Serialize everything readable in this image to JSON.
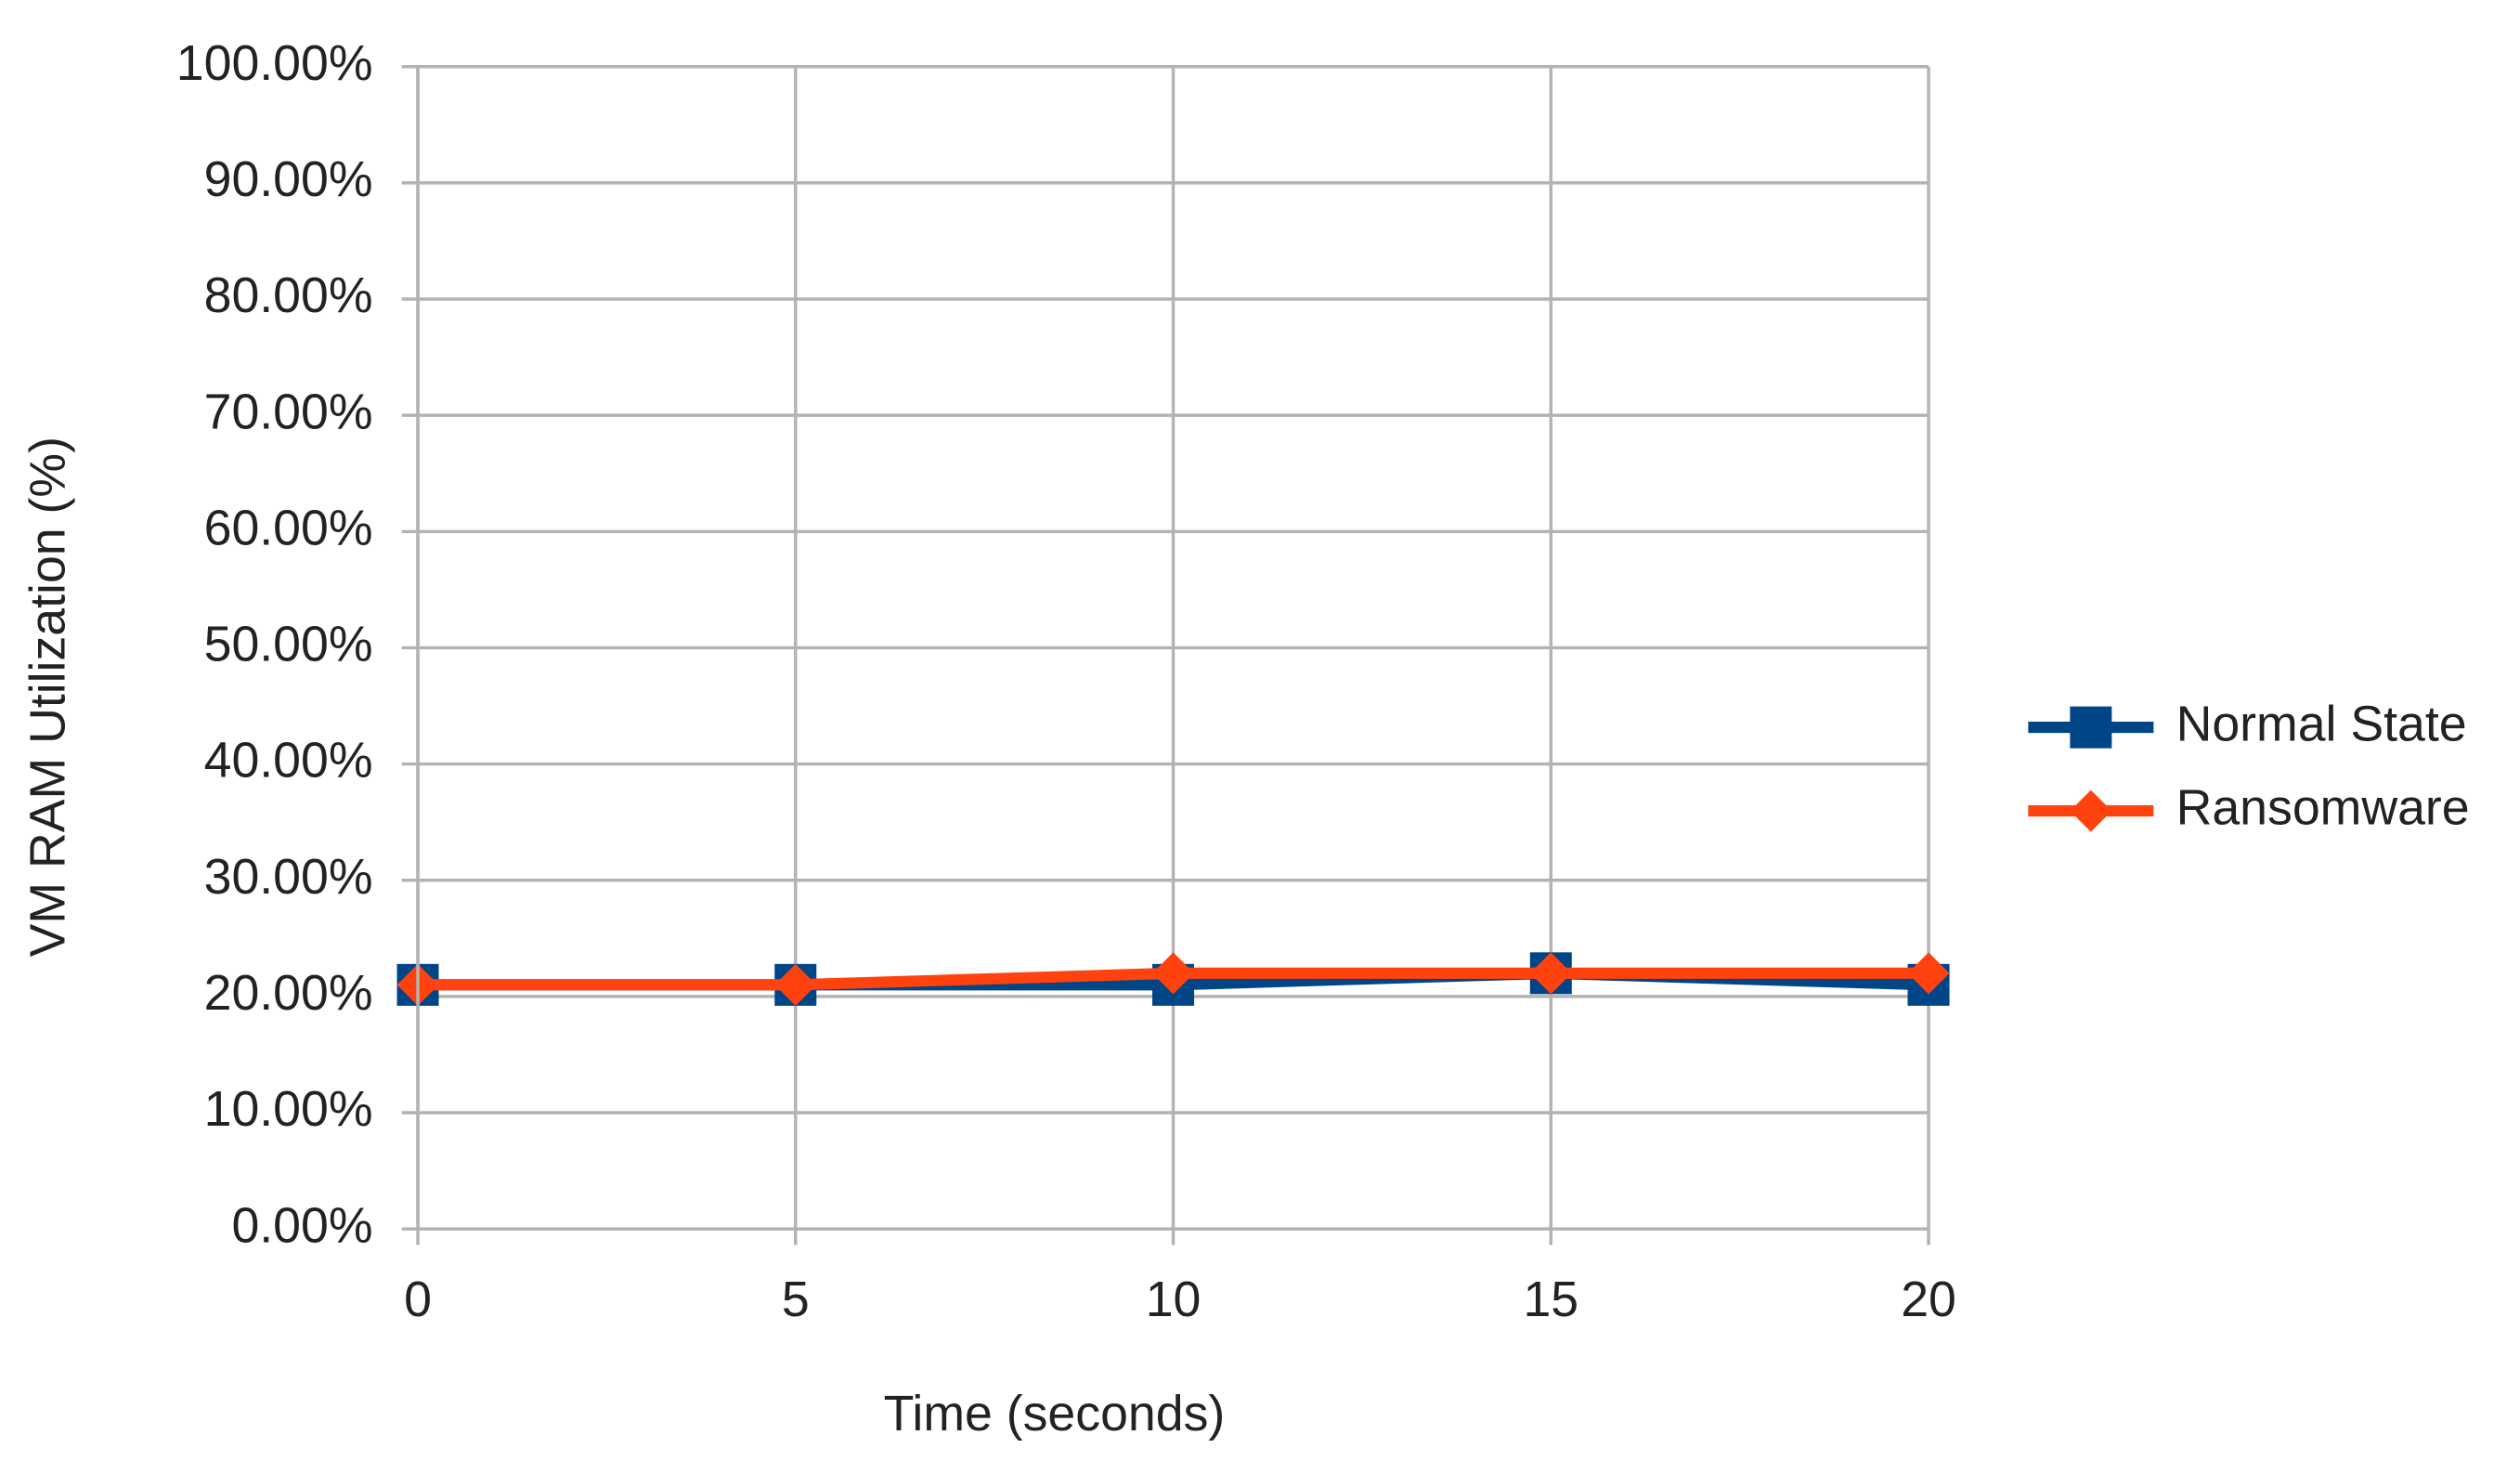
{
  "chart_data": {
    "type": "line",
    "x_label": "Time (seconds)",
    "y_label": "VM RAM Utilization (%)",
    "x": [
      0,
      5,
      10,
      15,
      20
    ],
    "series": [
      {
        "name": "Normal State",
        "color": "#004586",
        "marker": "square",
        "values": [
          21,
          21,
          21,
          22,
          21
        ]
      },
      {
        "name": "Ransomware",
        "color": "#ff420e",
        "marker": "diamond",
        "values": [
          21,
          21,
          22,
          22,
          22
        ]
      }
    ],
    "xlim": [
      0,
      20
    ],
    "xticks": [
      0,
      5,
      10,
      15,
      20
    ],
    "ylim": [
      0,
      100
    ],
    "yticks": [
      {
        "value": 0,
        "label": "0.00%"
      },
      {
        "value": 10,
        "label": "10.00%"
      },
      {
        "value": 20,
        "label": "20.00%"
      },
      {
        "value": 30,
        "label": "30.00%"
      },
      {
        "value": 40,
        "label": "40.00%"
      },
      {
        "value": 50,
        "label": "50.00%"
      },
      {
        "value": 60,
        "label": "60.00%"
      },
      {
        "value": 70,
        "label": "70.00%"
      },
      {
        "value": 80,
        "label": "80.00%"
      },
      {
        "value": 90,
        "label": "90.00%"
      },
      {
        "value": 100,
        "label": "100.00%"
      }
    ],
    "grid": true,
    "legend": "right"
  }
}
